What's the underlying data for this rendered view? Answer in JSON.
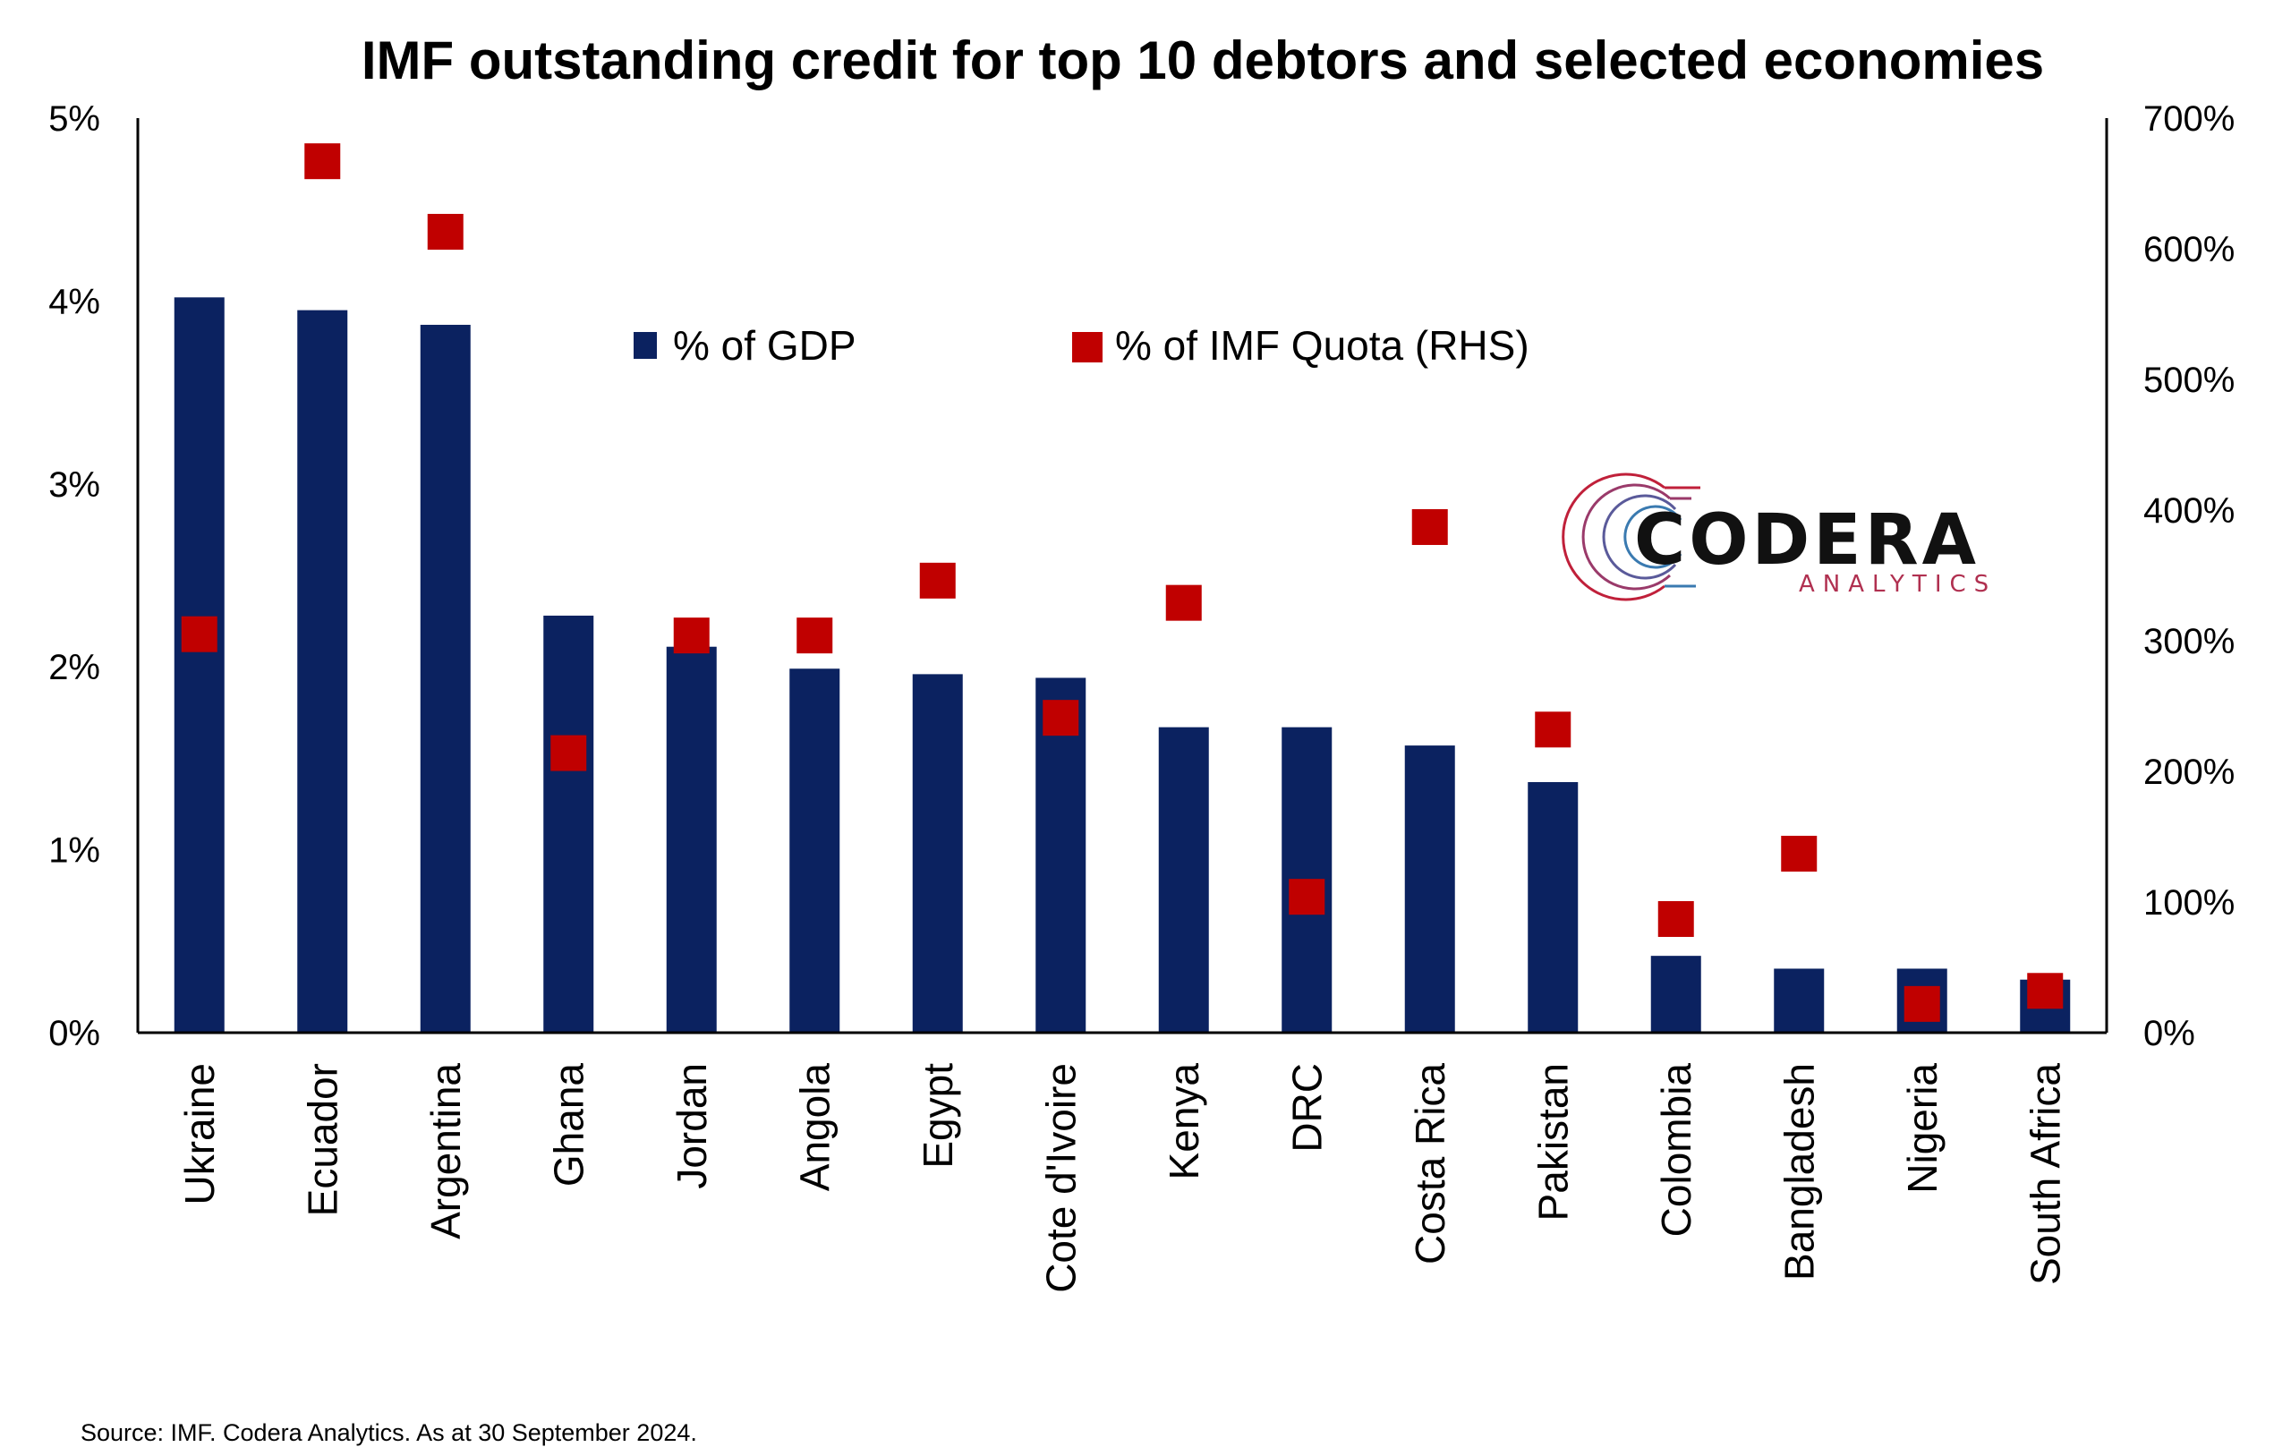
{
  "chart_data": {
    "type": "bar",
    "title": "IMF outstanding credit for top 10 debtors and selected economies",
    "categories": [
      "Ukraine",
      "Ecuador",
      "Argentina",
      "Ghana",
      "Jordan",
      "Angola",
      "Egypt",
      "Cote d'Ivoire",
      "Kenya",
      "DRC",
      "Costa Rica",
      "Pakistan",
      "Colombia",
      "Bangladesh",
      "Nigeria",
      "South Africa"
    ],
    "series": [
      {
        "name": "% of GDP",
        "type": "bar",
        "axis": "left",
        "color": "#0b2260",
        "values": [
          4.02,
          3.95,
          3.87,
          2.28,
          2.11,
          1.99,
          1.96,
          1.94,
          1.67,
          1.67,
          1.57,
          1.37,
          0.42,
          0.35,
          0.35,
          0.29
        ]
      },
      {
        "name": "% of IMF Quota (RHS)",
        "type": "marker",
        "axis": "right",
        "color": "#c00000",
        "values": [
          305,
          667,
          613,
          214,
          304,
          304,
          346,
          241,
          329,
          104,
          387,
          232,
          87,
          137,
          22,
          32
        ]
      }
    ],
    "y_left": {
      "min": 0,
      "max": 5,
      "ticks": [
        "0%",
        "1%",
        "2%",
        "3%",
        "4%",
        "5%"
      ]
    },
    "y_right": {
      "min": 0,
      "max": 700,
      "ticks": [
        "0%",
        "100%",
        "200%",
        "300%",
        "400%",
        "500%",
        "600%",
        "700%"
      ]
    },
    "legend_placement": "top-center",
    "grid": false
  },
  "logo": {
    "name": "CODERA",
    "subtitle": "ANALYTICS"
  },
  "source": "Source: IMF. Codera Analytics. As at 30 September 2024."
}
